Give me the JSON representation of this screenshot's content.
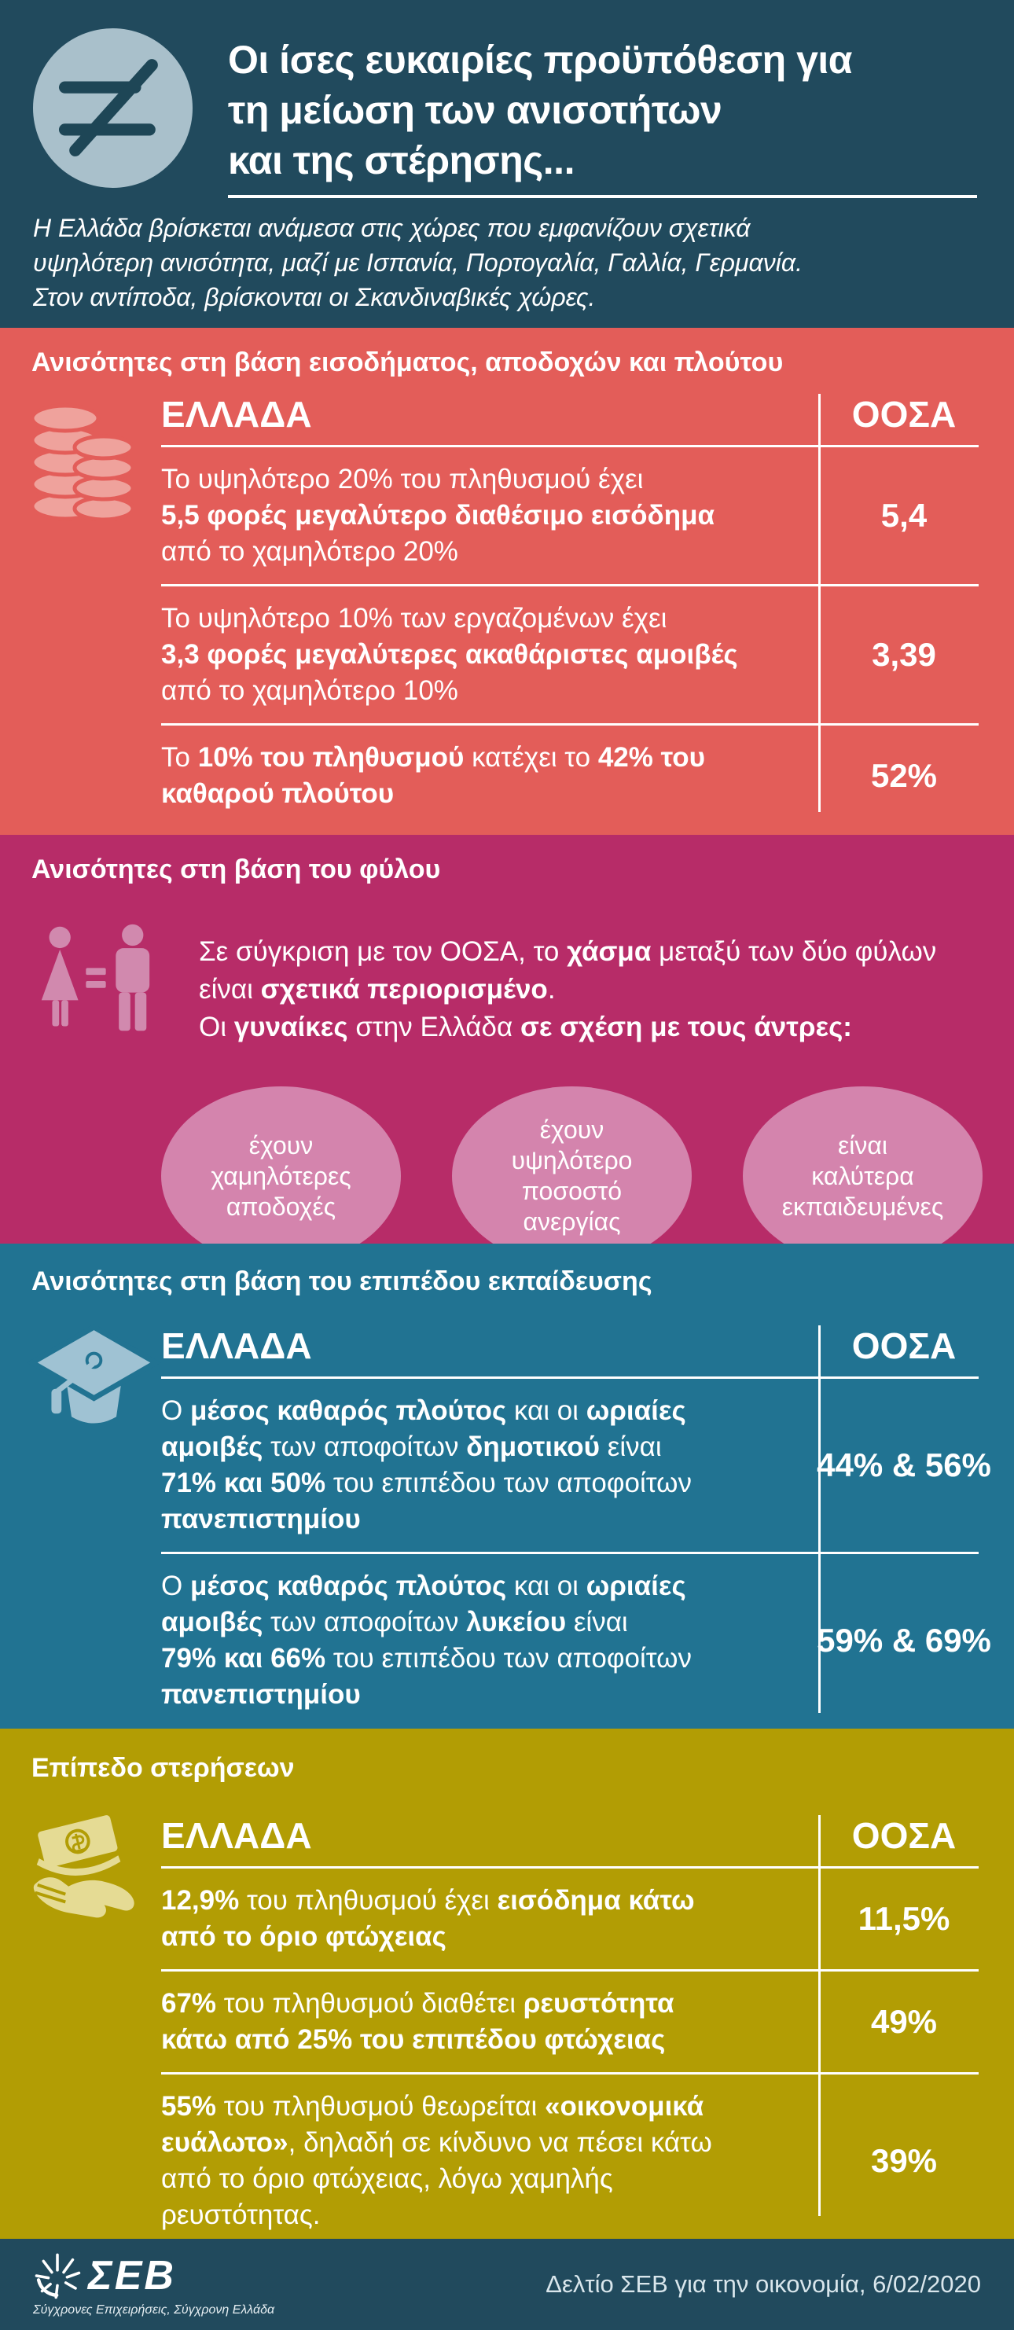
{
  "colors": {
    "hero_bg": "#214A5D",
    "hero_circle": "#A9C0CB",
    "income_bg": "#E35D59",
    "income_icon": "#EFA29C",
    "gender_bg": "#B72C68",
    "gender_bubble": "#D484AD",
    "gender_icon": "#D189AE",
    "education_bg": "#217392",
    "education_icon": "#9FC2D3",
    "deprivation_bg": "#B29D04",
    "deprivation_icon": "#E5DB94",
    "footer_bg": "#214A5D",
    "text": "#FFFFFF"
  },
  "header": {
    "icon": "not-equal-icon",
    "title": "Οι ίσες ευκαιρίες προϋπόθεση για\nτη μείωση των ανισοτήτων\nκαι της στέρησης...",
    "subtitle": "Η Ελλάδα βρίσκεται ανάμεσα στις χώρες που εμφανίζουν σχετικά\nυψηλότερη ανισότητα, μαζί με Ισπανία, Πορτογαλία, Γαλλία, Γερμανία.\nΣτον αντίποδα, βρίσκονται οι Σκανδιναβικές χώρες."
  },
  "sections": {
    "income": {
      "title": "Ανισότητες στη βάση εισοδήματος, αποδοχών και πλούτου",
      "icon": "coins-icon",
      "country_label": "ΕΛΛΑΔΑ",
      "oecd_label": "ΟΟΣΑ",
      "rows": [
        {
          "text": [
            {
              "t": "Το υψηλότερο 20% του πληθυσμού έχει\n"
            },
            {
              "t": "5,5 φορές μεγαλύτερο διαθέσιμο εισόδημα",
              "b": true
            },
            {
              "t": "\nαπό το χαμηλότερο 20%"
            }
          ],
          "oecd_value": "5,4"
        },
        {
          "text": [
            {
              "t": "Το υψηλότερο 10% των εργαζομένων έχει\n"
            },
            {
              "t": "3,3 φορές μεγαλύτερες ακαθάριστες αμοιβές",
              "b": true
            },
            {
              "t": "\nαπό το χαμηλότερο 10%"
            }
          ],
          "oecd_value": "3,39"
        },
        {
          "text": [
            {
              "t": "Το "
            },
            {
              "t": "10% του πληθυσμού",
              "b": true
            },
            {
              "t": " κατέχει το "
            },
            {
              "t": "42% του\nκαθαρού πλούτου",
              "b": true
            }
          ],
          "oecd_value": "52%"
        }
      ]
    },
    "gender": {
      "title": "Ανισότητες στη βάση του φύλου",
      "icon": "gender-equality-icon",
      "intro": [
        {
          "t": "Σε σύγκριση με τον ΟΟΣΑ, το "
        },
        {
          "t": "χάσμα",
          "b": true
        },
        {
          "t": " μεταξύ των δύο φύλων\nείναι "
        },
        {
          "t": "σχετικά περιορισμένο",
          "b": true
        },
        {
          "t": ".\nΟι "
        },
        {
          "t": "γυναίκες",
          "b": true
        },
        {
          "t": " στην Ελλάδα "
        },
        {
          "t": "σε σχέση με τους άντρες:",
          "b": true
        }
      ],
      "bubbles": [
        "έχουν\nχαμηλότερες\nαποδοχές",
        "έχουν\nυψηλότερο\nποσοστό\nανεργίας",
        "είναι\nκαλύτερα\nεκπαιδευμένες"
      ]
    },
    "education": {
      "title": "Ανισότητες στη βάση του επιπέδου εκπαίδευσης",
      "icon": "graduation-cap-icon",
      "country_label": "ΕΛΛΑΔΑ",
      "oecd_label": "ΟΟΣΑ",
      "rows": [
        {
          "text": [
            {
              "t": "Ο "
            },
            {
              "t": "μέσος καθαρός πλούτος",
              "b": true
            },
            {
              "t": " και οι "
            },
            {
              "t": "ωριαίες\nαμοιβές",
              "b": true
            },
            {
              "t": " των αποφοίτων "
            },
            {
              "t": "δημοτικού",
              "b": true
            },
            {
              "t": " είναι\n"
            },
            {
              "t": "71% και 50%",
              "b": true
            },
            {
              "t": " του επιπέδου των αποφοίτων\n"
            },
            {
              "t": "πανεπιστημίου",
              "b": true
            }
          ],
          "oecd_value": "44% & 56%"
        },
        {
          "text": [
            {
              "t": "Ο "
            },
            {
              "t": "μέσος καθαρός πλούτος",
              "b": true
            },
            {
              "t": " και οι "
            },
            {
              "t": "ωριαίες\nαμοιβές",
              "b": true
            },
            {
              "t": " των αποφοίτων "
            },
            {
              "t": "λυκείου",
              "b": true
            },
            {
              "t": " είναι\n"
            },
            {
              "t": "79% και 66%",
              "b": true
            },
            {
              "t": " του επιπέδου των αποφοίτων\n"
            },
            {
              "t": "πανεπιστημίου",
              "b": true
            }
          ],
          "oecd_value": "59% & 69%"
        }
      ]
    },
    "deprivation": {
      "title": "Επίπεδο στερήσεων",
      "icon": "money-hand-icon",
      "country_label": "ΕΛΛΑΔΑ",
      "oecd_label": "ΟΟΣΑ",
      "rows": [
        {
          "text": [
            {
              "t": "12,9%",
              "b": true
            },
            {
              "t": " του πληθυσμού έχει "
            },
            {
              "t": "εισόδημα κάτω\nαπό το όριο φτώχειας",
              "b": true
            }
          ],
          "oecd_value": "11,5%"
        },
        {
          "text": [
            {
              "t": "67%",
              "b": true
            },
            {
              "t": " του πληθυσμού διαθέτει "
            },
            {
              "t": "ρευστότητα\nκάτω από 25% του επιπέδου φτώχειας",
              "b": true
            }
          ],
          "oecd_value": "49%"
        },
        {
          "text": [
            {
              "t": "55%",
              "b": true
            },
            {
              "t": " του πληθυσμού θεωρείται "
            },
            {
              "t": "«οικονομικά\nευάλωτο»",
              "b": true
            },
            {
              "t": ", δηλαδή σε κίνδυνο να πέσει κάτω\nαπό το όριο φτώχειας, λόγω χαμηλής\nρευστότητας."
            }
          ],
          "oecd_value": "39%"
        }
      ]
    }
  },
  "footer": {
    "logo_text": "ΣΕΒ",
    "logo_tagline": "Σύγχρονες Επιχειρήσεις, Σύγχρονη Ελλάδα",
    "note": "Δελτίο ΣΕΒ για την οικονομία, 6/02/2020"
  }
}
